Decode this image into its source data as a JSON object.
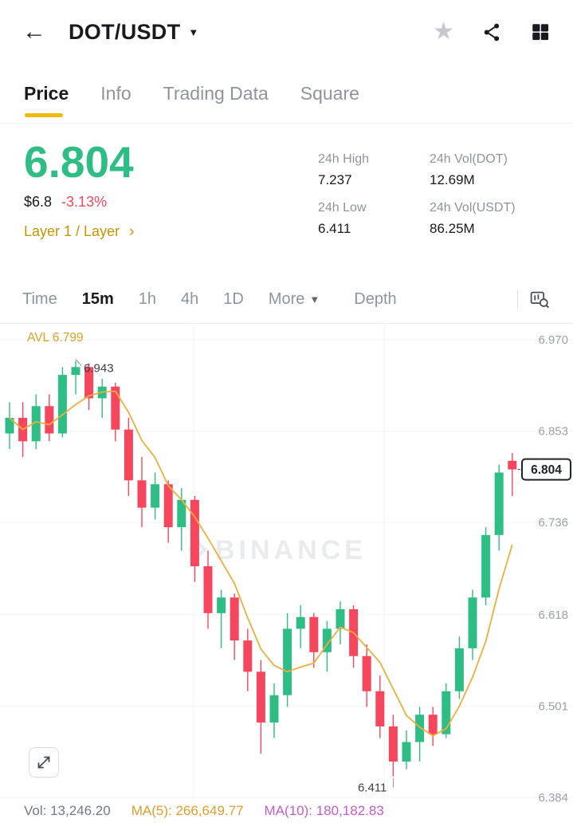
{
  "header": {
    "title": "DOT/USDT"
  },
  "icons": {
    "back": "←",
    "caret_down": "▼",
    "star": "★",
    "more_caret": "▼",
    "tag_chevron": "›"
  },
  "tabs": [
    {
      "label": "Price"
    },
    {
      "label": "Info"
    },
    {
      "label": "Trading Data"
    },
    {
      "label": "Square"
    }
  ],
  "ticker": {
    "last_price": "6.804",
    "fiat_price": "$6.8",
    "change_24h": "-3.13%",
    "category_tag": "Layer 1 / Layer",
    "stats": [
      {
        "label": "24h High",
        "value": "7.237"
      },
      {
        "label": "24h Vol(DOT)",
        "value": "12.69M"
      },
      {
        "label": "24h Low",
        "value": "6.411"
      },
      {
        "label": "24h Vol(USDT)",
        "value": "86.25M"
      }
    ]
  },
  "timeframes": [
    {
      "label": "Time"
    },
    {
      "label": "15m"
    },
    {
      "label": "1h"
    },
    {
      "label": "4h"
    },
    {
      "label": "1D"
    },
    {
      "label": "More"
    },
    {
      "label": "Depth"
    }
  ],
  "footer": {
    "vol": "Vol: 13,246.20",
    "ma5": "MA(5): 266,649.77",
    "ma10": "MA(10): 180,182.83"
  },
  "colors": {
    "up_green": "#2ebd85",
    "down_red": "#f6465d",
    "accent_yellow": "#f0b90b",
    "tag_gold": "#c99400",
    "ma5_line": "#efae3b",
    "ma10_pink": "#c45bca",
    "watermark_gray": "#e9ebee",
    "axis_label_gray": "#9aa1ab",
    "avl_orange": "#dba222"
  },
  "chart_data": {
    "type": "candlestick",
    "interval": "15m",
    "avl_label": "AVL 6.799",
    "watermark_text": "BINANCE",
    "ylim": [
      6.384,
      6.97
    ],
    "y_ticks": [
      6.97,
      6.853,
      6.736,
      6.618,
      6.501,
      6.384
    ],
    "high_annotation": {
      "text": "6.943",
      "index": 5
    },
    "low_annotation": {
      "text": "6.411",
      "index": 29
    },
    "last_price_tag": "6.804",
    "ma_period": 5,
    "candles": [
      [
        6.85,
        6.89,
        6.83,
        6.87
      ],
      [
        6.87,
        6.89,
        6.82,
        6.84
      ],
      [
        6.84,
        6.9,
        6.83,
        6.885
      ],
      [
        6.885,
        6.9,
        6.84,
        6.85
      ],
      [
        6.85,
        6.935,
        6.845,
        6.925
      ],
      [
        6.925,
        6.943,
        6.9,
        6.935
      ],
      [
        6.935,
        6.94,
        6.88,
        6.895
      ],
      [
        6.895,
        6.92,
        6.87,
        6.91
      ],
      [
        6.91,
        6.915,
        6.84,
        6.855
      ],
      [
        6.855,
        6.87,
        6.77,
        6.79
      ],
      [
        6.79,
        6.82,
        6.73,
        6.755
      ],
      [
        6.755,
        6.8,
        6.74,
        6.785
      ],
      [
        6.785,
        6.79,
        6.71,
        6.73
      ],
      [
        6.73,
        6.78,
        6.7,
        6.765
      ],
      [
        6.765,
        6.77,
        6.66,
        6.68
      ],
      [
        6.68,
        6.7,
        6.6,
        6.62
      ],
      [
        6.62,
        6.65,
        6.575,
        6.64
      ],
      [
        6.64,
        6.645,
        6.56,
        6.585
      ],
      [
        6.585,
        6.6,
        6.52,
        6.545
      ],
      [
        6.545,
        6.56,
        6.44,
        6.48
      ],
      [
        6.48,
        6.53,
        6.46,
        6.515
      ],
      [
        6.515,
        6.62,
        6.5,
        6.6
      ],
      [
        6.6,
        6.63,
        6.575,
        6.615
      ],
      [
        6.615,
        6.62,
        6.55,
        6.57
      ],
      [
        6.57,
        6.61,
        6.545,
        6.6
      ],
      [
        6.6,
        6.635,
        6.58,
        6.625
      ],
      [
        6.625,
        6.63,
        6.55,
        6.565
      ],
      [
        6.565,
        6.58,
        6.5,
        6.52
      ],
      [
        6.52,
        6.54,
        6.46,
        6.475
      ],
      [
        6.475,
        6.49,
        6.411,
        6.43
      ],
      [
        6.43,
        6.47,
        6.42,
        6.455
      ],
      [
        6.455,
        6.5,
        6.43,
        6.49
      ],
      [
        6.49,
        6.5,
        6.45,
        6.465
      ],
      [
        6.465,
        6.53,
        6.46,
        6.52
      ],
      [
        6.52,
        6.59,
        6.51,
        6.575
      ],
      [
        6.575,
        6.65,
        6.56,
        6.64
      ],
      [
        6.64,
        6.73,
        6.63,
        6.72
      ],
      [
        6.72,
        6.81,
        6.7,
        6.8
      ],
      [
        6.815,
        6.825,
        6.77,
        6.804
      ]
    ]
  }
}
